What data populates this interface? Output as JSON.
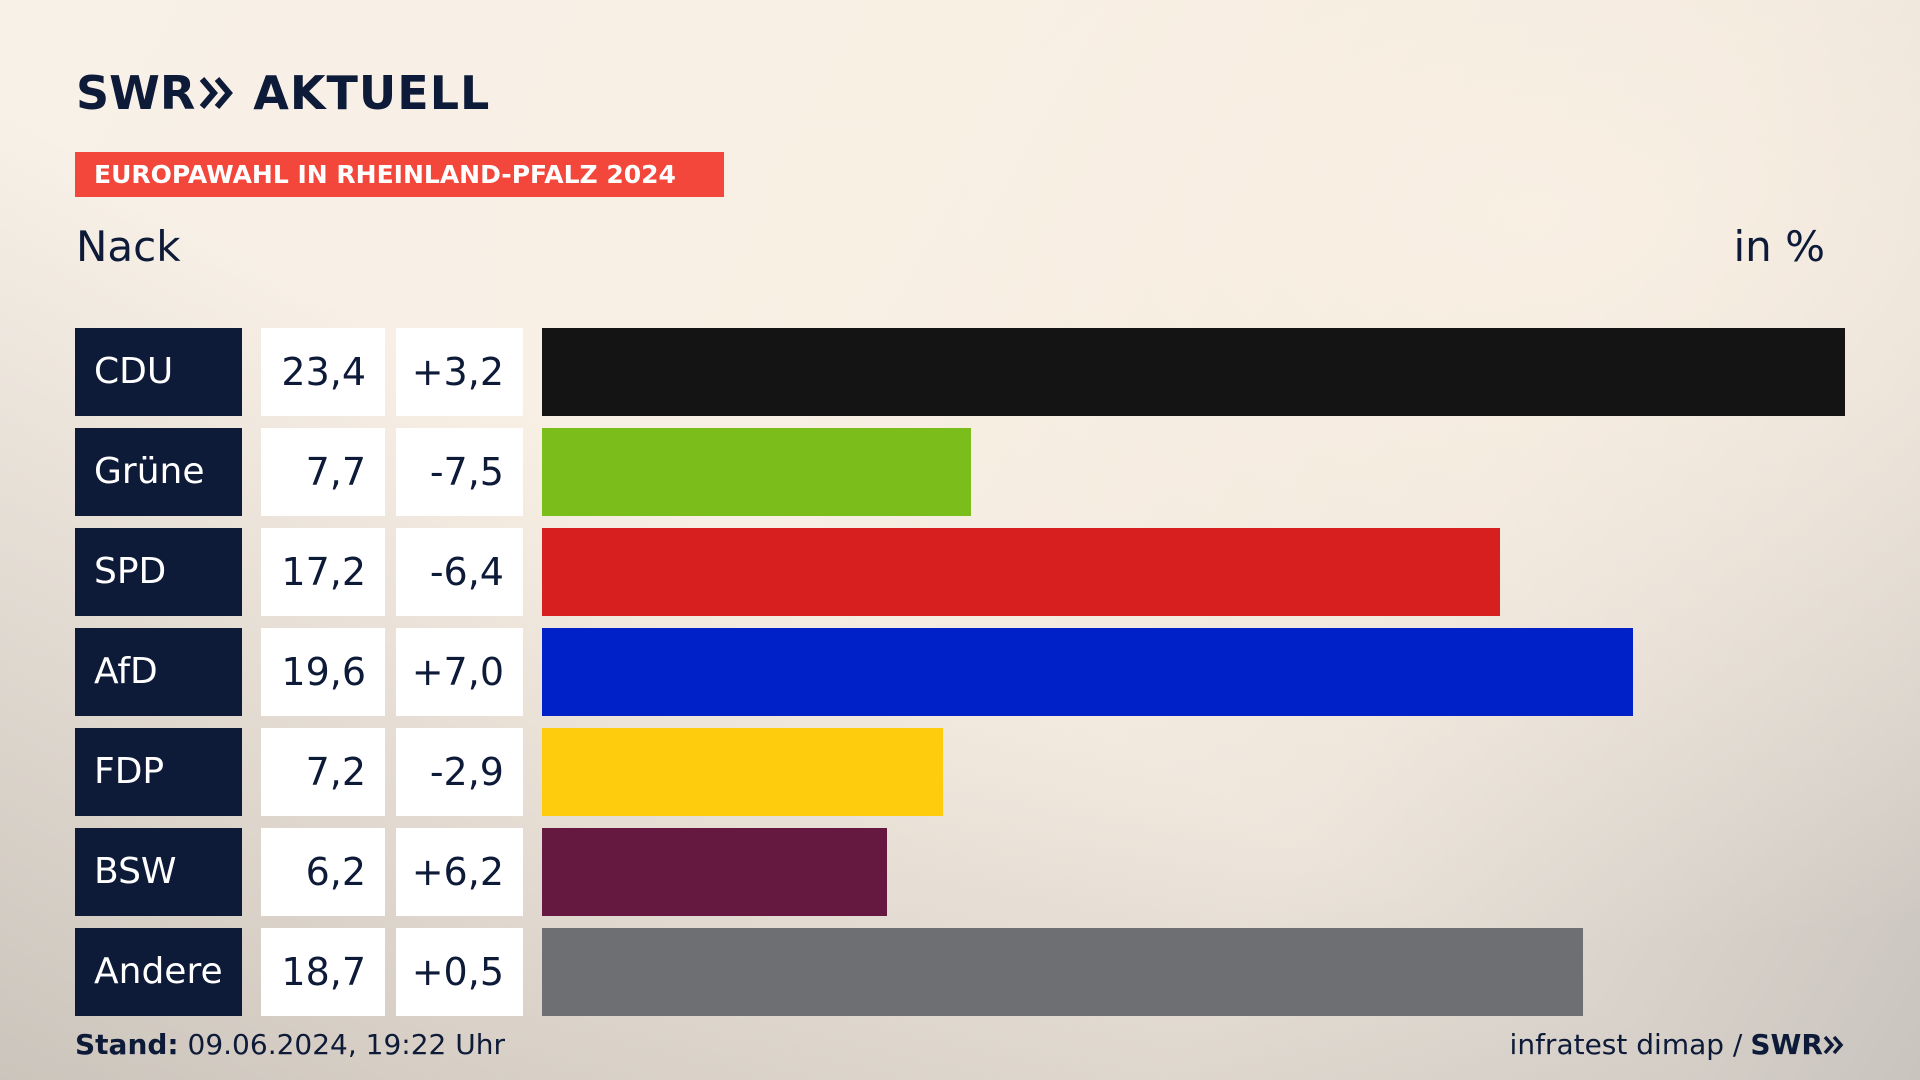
{
  "header": {
    "logo_part1": "SWR",
    "logo_part2": "AKTUELL",
    "banner": "EUROPAWAHL IN RHEINLAND-PFALZ 2024",
    "subtitle": "Nack",
    "unit": "in %"
  },
  "colors": {
    "navy": "#0d1a38",
    "banner_red": "#f4473b"
  },
  "chart_data": {
    "type": "bar",
    "orientation": "horizontal",
    "title": "Nack",
    "unit_label": "in %",
    "categories": [
      "CDU",
      "Grüne",
      "SPD",
      "AfD",
      "FDP",
      "BSW",
      "Andere"
    ],
    "values": [
      23.4,
      7.7,
      17.2,
      19.6,
      7.2,
      6.2,
      18.7
    ],
    "value_labels": [
      "23,4",
      "7,7",
      "17,2",
      "19,6",
      "7,2",
      "6,2",
      "18,7"
    ],
    "diff_labels": [
      "+3,2",
      "-7,5",
      "-6,4",
      "+7,0",
      "-2,9",
      "+6,2",
      "+0,5"
    ],
    "diffs": [
      3.2,
      -7.5,
      -6.4,
      7.0,
      -2.9,
      6.2,
      0.5
    ],
    "bar_colors": [
      "#141414",
      "#7bbd1b",
      "#d71f1f",
      "#0021c8",
      "#fecc0c",
      "#661940",
      "#6e6f72"
    ],
    "xlim": [
      0,
      23.4
    ],
    "grid": false,
    "legend": "none"
  },
  "footer": {
    "stand_label": "Stand:",
    "stand_value": "09.06.2024, 19:22 Uhr",
    "source": "infratest dimap /",
    "source_brand": "SWR"
  }
}
